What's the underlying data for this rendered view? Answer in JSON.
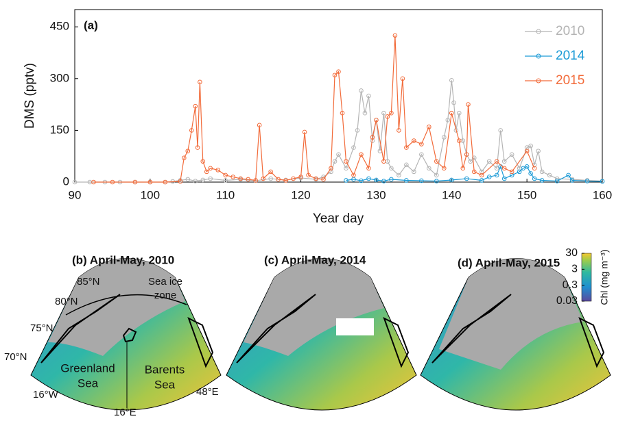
{
  "chart_data": {
    "type": "line",
    "annotation": "(a)",
    "xlabel": "Year day",
    "ylabel": "DMS (pptv)",
    "xlim": [
      90,
      160
    ],
    "xticks": [
      90,
      100,
      110,
      120,
      130,
      140,
      150,
      160
    ],
    "ylim": [
      0,
      500
    ],
    "yticks": [
      0,
      150,
      300,
      450
    ],
    "legend": "upper right",
    "series": [
      {
        "name": "2010",
        "color": "#b4b4b4",
        "x": [
          90,
          92,
          94,
          96,
          98,
          100,
          102,
          103,
          104,
          105,
          106,
          107,
          108,
          110,
          112,
          114,
          116,
          118,
          120,
          122,
          123,
          124,
          124.5,
          125,
          126,
          127,
          127.5,
          128,
          128.5,
          129,
          129.5,
          130,
          130.5,
          131,
          131.5,
          132,
          133,
          134,
          135,
          136,
          137,
          138,
          139,
          139.5,
          140,
          140.3,
          140.6,
          141,
          141.5,
          142,
          142.5,
          143,
          144,
          145,
          146,
          146.5,
          147,
          148,
          149,
          150,
          150.5,
          151,
          151.5,
          152,
          153,
          154,
          156,
          158,
          160
        ],
        "values": [
          0,
          0,
          0,
          0,
          0,
          0,
          0,
          2,
          5,
          8,
          3,
          6,
          10,
          5,
          8,
          4,
          10,
          6,
          12,
          8,
          15,
          30,
          60,
          80,
          40,
          100,
          150,
          265,
          200,
          250,
          120,
          180,
          90,
          200,
          60,
          40,
          20,
          50,
          30,
          80,
          40,
          20,
          130,
          180,
          295,
          230,
          150,
          200,
          120,
          80,
          60,
          70,
          30,
          60,
          40,
          150,
          60,
          80,
          40,
          100,
          105,
          50,
          90,
          30,
          20,
          10,
          8,
          5,
          3
        ]
      },
      {
        "name": "2014",
        "color": "#1b9ad6",
        "x": [
          126,
          127,
          128,
          129,
          130,
          131,
          132,
          134,
          136,
          138,
          140,
          142,
          144,
          145,
          146,
          146.5,
          147,
          148,
          149,
          149.5,
          150,
          150.5,
          151,
          152,
          154,
          155.5,
          156,
          158,
          160
        ],
        "values": [
          5,
          8,
          4,
          10,
          6,
          3,
          8,
          5,
          4,
          3,
          6,
          10,
          5,
          15,
          20,
          45,
          10,
          20,
          30,
          40,
          45,
          25,
          10,
          5,
          3,
          20,
          5,
          3,
          2
        ]
      },
      {
        "name": "2015",
        "color": "#f26b3a",
        "x": [
          92.5,
          95,
          98,
          100,
          102,
          104,
          104.5,
          105,
          105.5,
          106,
          106.3,
          106.6,
          107,
          107.5,
          108,
          109,
          110,
          111,
          112,
          113,
          114,
          114.5,
          115,
          116,
          117,
          118,
          119,
          120,
          120.5,
          121,
          122,
          123,
          124,
          124.5,
          125,
          125.5,
          126,
          127,
          128,
          129,
          129.5,
          130,
          131,
          131.5,
          132,
          132.5,
          133,
          133.5,
          134,
          135,
          136,
          137,
          138,
          139,
          140,
          141,
          141.5,
          142,
          142.2,
          143,
          144,
          146,
          147,
          148,
          150,
          151
        ],
        "values": [
          0,
          0,
          0,
          0,
          0,
          2,
          70,
          90,
          150,
          220,
          100,
          290,
          60,
          30,
          40,
          35,
          20,
          15,
          10,
          8,
          5,
          165,
          10,
          30,
          8,
          5,
          10,
          15,
          145,
          20,
          10,
          8,
          40,
          310,
          320,
          200,
          60,
          20,
          80,
          40,
          130,
          180,
          60,
          190,
          200,
          425,
          150,
          300,
          100,
          120,
          110,
          160,
          60,
          40,
          200,
          120,
          40,
          80,
          225,
          30,
          20,
          60,
          40,
          30,
          90,
          40
        ]
      }
    ]
  },
  "maps": {
    "panels": [
      "(b) April-May, 2010",
      "(c) April-May, 2014",
      "(d) April-May, 2015"
    ],
    "graticule": {
      "lat85": "85°N",
      "lat80": "80°N",
      "lat75": "75°N",
      "lat70": "70°N",
      "lon16w": "16°W",
      "lon16e": "16°E",
      "lon48e": "48°E"
    },
    "regions": {
      "sea_ice_zone": [
        "Sea ice",
        "zone"
      ],
      "greenland_sea": [
        "Greenland",
        "Sea"
      ],
      "barents_sea": [
        "Barents",
        "Sea"
      ]
    },
    "colorbar": {
      "label": "Chl (mg m⁻³)",
      "scale": "log",
      "lim": [
        0.03,
        30
      ],
      "ticks": [
        0.03,
        0.3,
        3,
        30
      ]
    }
  }
}
